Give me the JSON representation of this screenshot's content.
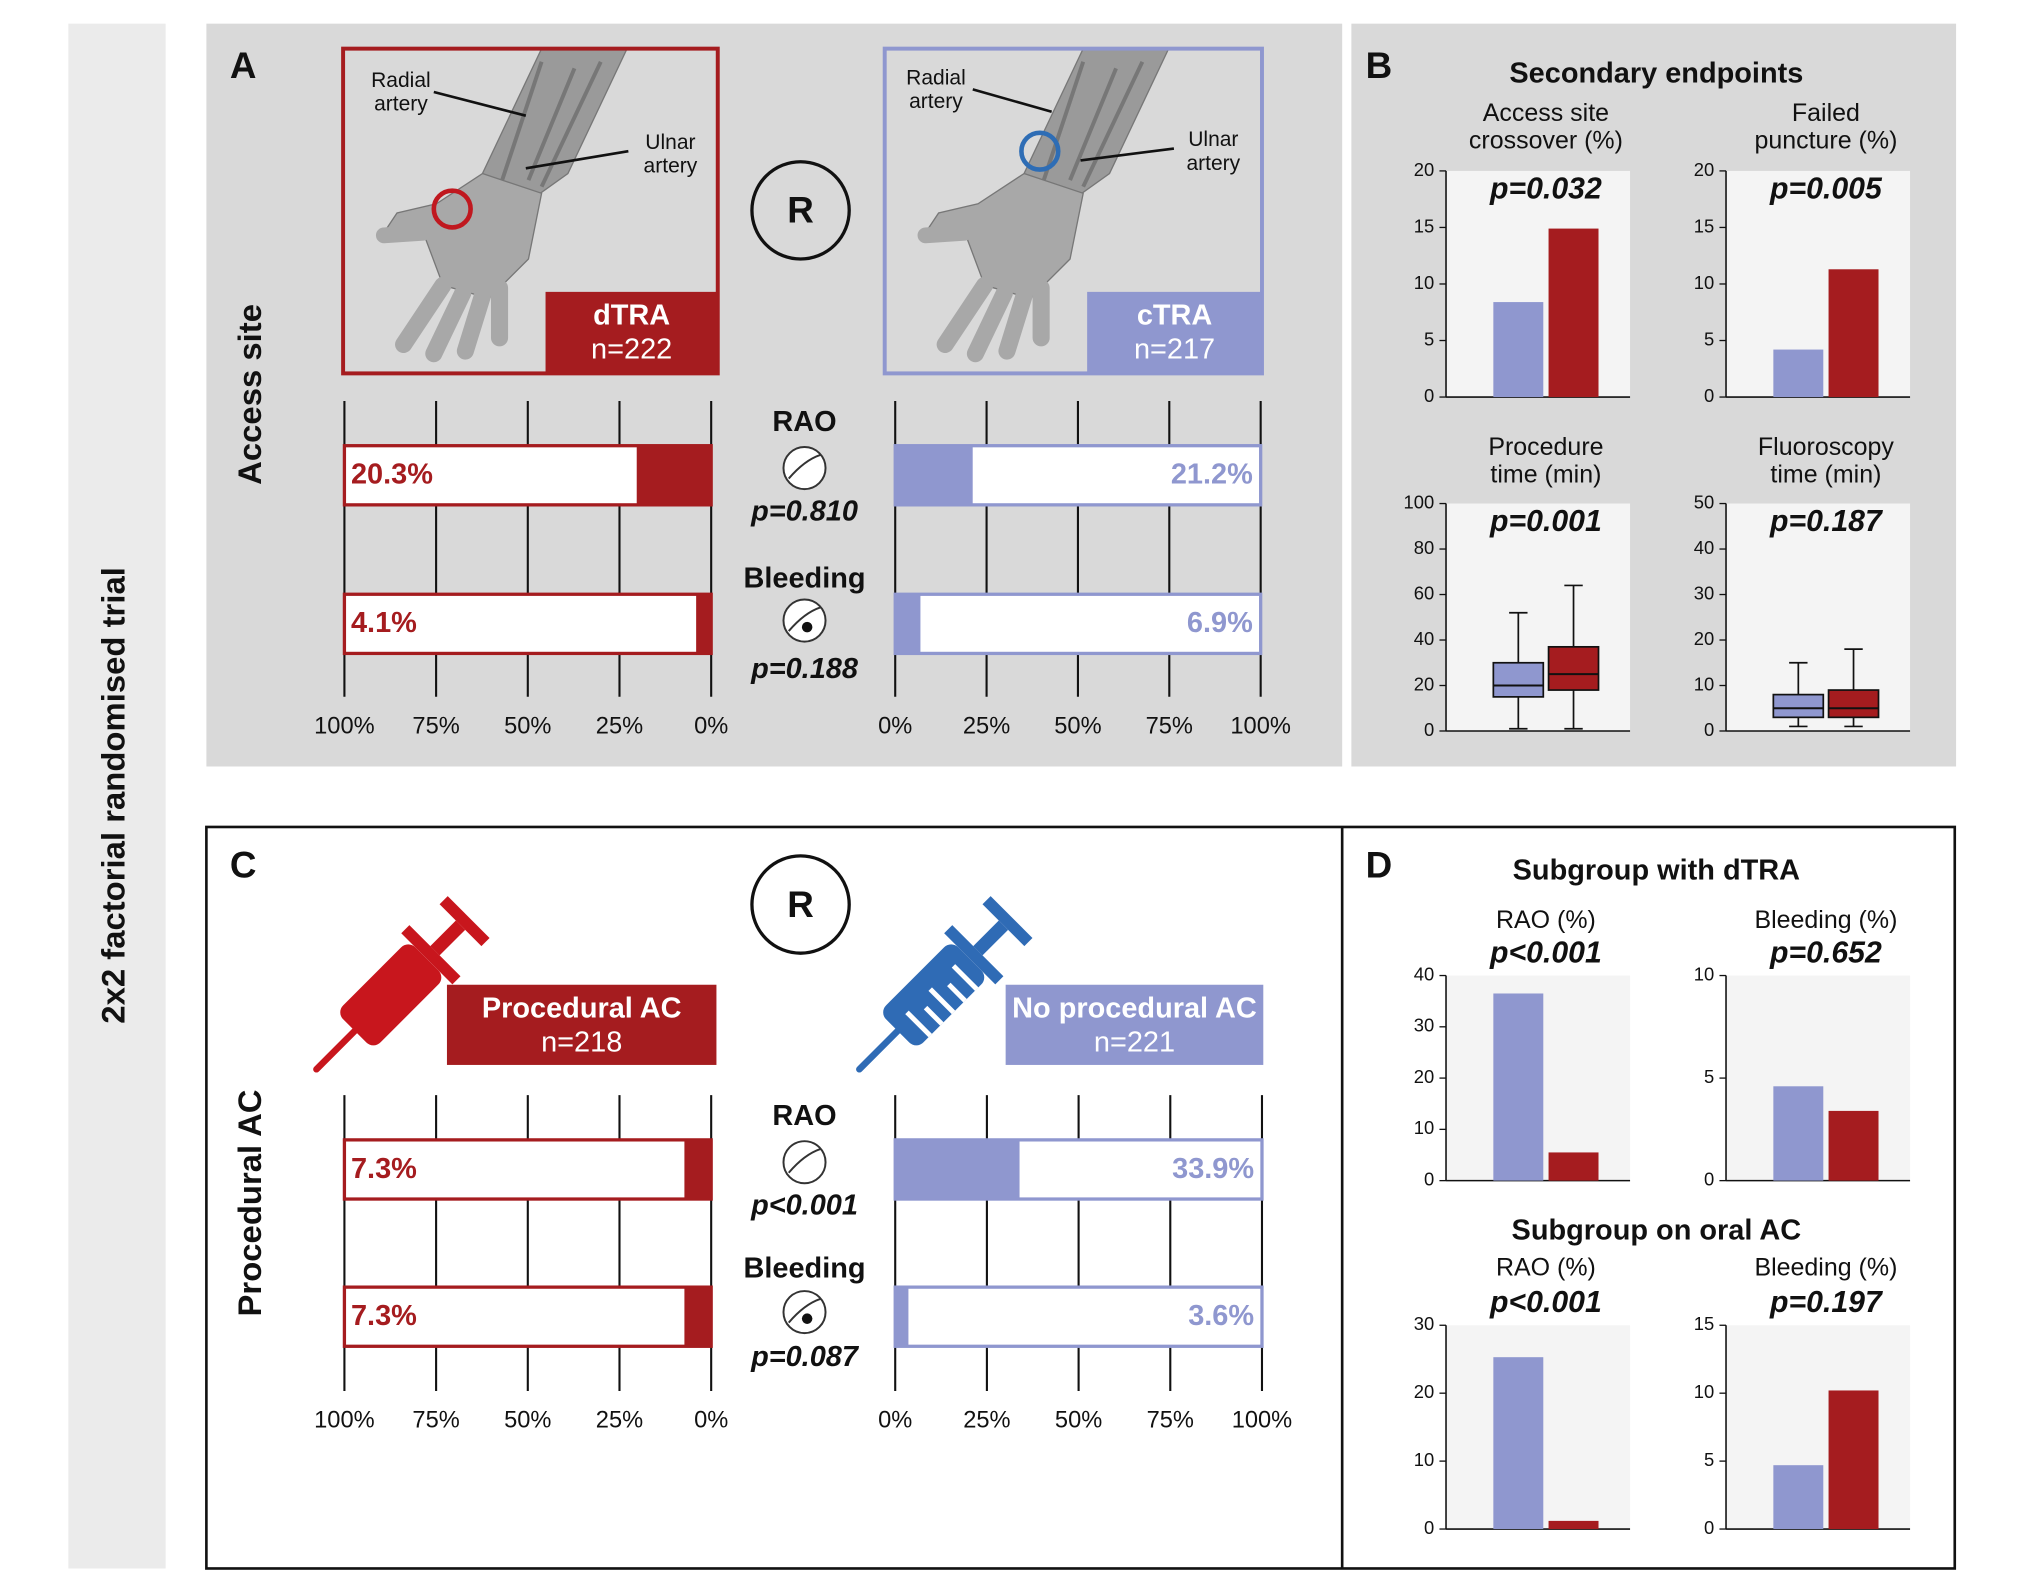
{
  "side_title": "2x2 factorial randomised trial",
  "panels": [
    {
      "letter": "A",
      "row_label": "Access site",
      "randomisation": "R",
      "arms": [
        {
          "name": "dTRA",
          "n": "n=222"
        },
        {
          "name": "cTRA",
          "n": "n=217"
        }
      ],
      "annotations": [
        [
          "Radial",
          "artery"
        ],
        [
          "Ulnar",
          "artery"
        ],
        [
          "Radial",
          "artery"
        ],
        [
          "Ulnar",
          "artery"
        ]
      ],
      "outcomes": [
        {
          "name": "RAO",
          "p": "p=0.810"
        },
        {
          "name": "Bleeding",
          "p": "p=0.188"
        }
      ]
    },
    {
      "letter": "B",
      "titles": [
        "Secondary endpoints"
      ]
    },
    {
      "letter": "C",
      "row_label": "Procedural AC",
      "randomisation": "R",
      "arms": [
        {
          "name": "Procedural AC",
          "n": "n=218"
        },
        {
          "name": "No procedural AC",
          "n": "n=221"
        }
      ],
      "outcomes": [
        {
          "name": "RAO",
          "p": "p<0.001"
        },
        {
          "name": "Bleeding",
          "p": "p=0.087"
        }
      ]
    },
    {
      "letter": "D",
      "titles": [
        "Subgroup with dTRA",
        "Subgroup on oral AC"
      ]
    }
  ],
  "chart_data": [
    {
      "type": "hbar",
      "values": [
        20.3,
        4.1
      ],
      "value_labels": [
        "20.3%",
        "4.1%"
      ],
      "color": "#a51c1f",
      "xlim": [
        100,
        0
      ],
      "xticks": [
        {
          "value": 100,
          "label": "100%"
        },
        {
          "value": 75,
          "label": "75%"
        },
        {
          "value": 50,
          "label": "50%"
        },
        {
          "value": 25,
          "label": "25%"
        },
        {
          "value": 0,
          "label": "0%"
        }
      ]
    },
    {
      "type": "hbar",
      "values": [
        21.2,
        6.9
      ],
      "value_labels": [
        "21.2%",
        "6.9%"
      ],
      "color": "#8f97cf",
      "xlim": [
        0,
        100
      ],
      "xticks": [
        {
          "value": 0,
          "label": "0%"
        },
        {
          "value": 25,
          "label": "25%"
        },
        {
          "value": 50,
          "label": "50%"
        },
        {
          "value": 75,
          "label": "75%"
        },
        {
          "value": 100,
          "label": "100%"
        }
      ]
    },
    {
      "type": "hbar",
      "values": [
        7.3,
        7.3
      ],
      "value_labels": [
        "7.3%",
        "7.3%"
      ],
      "color": "#a51c1f",
      "xlim": [
        100,
        0
      ],
      "xticks": [
        {
          "value": 100,
          "label": "100%"
        },
        {
          "value": 75,
          "label": "75%"
        },
        {
          "value": 50,
          "label": "50%"
        },
        {
          "value": 25,
          "label": "25%"
        },
        {
          "value": 0,
          "label": "0%"
        }
      ]
    },
    {
      "type": "hbar",
      "values": [
        33.9,
        3.6
      ],
      "value_labels": [
        "33.9%",
        "3.6%"
      ],
      "color": "#8f97cf",
      "xlim": [
        0,
        100
      ],
      "xticks": [
        {
          "value": 0,
          "label": "0%"
        },
        {
          "value": 25,
          "label": "25%"
        },
        {
          "value": 50,
          "label": "50%"
        },
        {
          "value": 75,
          "label": "75%"
        },
        {
          "value": 100,
          "label": "100%"
        }
      ]
    },
    {
      "type": "bar",
      "title": [
        "Access site",
        "crossover (%)"
      ],
      "subtitle": "p=0.032",
      "values": [
        8.4,
        14.9
      ],
      "colors": [
        "#8f97cf",
        "#a51c1f"
      ],
      "ylim": [
        0,
        20
      ],
      "yticks": [
        0,
        5,
        10,
        15,
        20
      ]
    },
    {
      "type": "bar",
      "title": [
        "Failed",
        "puncture (%)"
      ],
      "subtitle": "p=0.005",
      "values": [
        4.2,
        11.3
      ],
      "colors": [
        "#8f97cf",
        "#a51c1f"
      ],
      "ylim": [
        0,
        20
      ],
      "yticks": [
        0,
        5,
        10,
        15,
        20
      ]
    },
    {
      "type": "box",
      "title": [
        "Procedure",
        "time (min)"
      ],
      "subtitle": "p=0.001",
      "colors": [
        "#8f97cf",
        "#a51c1f"
      ],
      "ylim": [
        0,
        100
      ],
      "yticks": [
        0,
        20,
        40,
        60,
        80,
        100
      ],
      "boxes": [
        {
          "whislo": 1,
          "q1": 15,
          "med": 20,
          "q3": 30,
          "whishi": 52
        },
        {
          "whislo": 1,
          "q1": 18,
          "med": 25,
          "q3": 37,
          "whishi": 64
        }
      ]
    },
    {
      "type": "box",
      "title": [
        "Fluoroscopy",
        "time (min)"
      ],
      "subtitle": "p=0.187",
      "colors": [
        "#8f97cf",
        "#a51c1f"
      ],
      "ylim": [
        0,
        50
      ],
      "yticks": [
        0,
        10,
        20,
        30,
        40,
        50
      ],
      "boxes": [
        {
          "whislo": 1,
          "q1": 3,
          "med": 5,
          "q3": 8,
          "whishi": 15
        },
        {
          "whislo": 1,
          "q1": 3,
          "med": 5,
          "q3": 9,
          "whishi": 18
        }
      ]
    },
    {
      "type": "bar",
      "title": [
        "RAO (%)"
      ],
      "subtitle": "p<0.001",
      "values": [
        36.5,
        5.5
      ],
      "colors": [
        "#8f97cf",
        "#a51c1f"
      ],
      "ylim": [
        0,
        40
      ],
      "yticks": [
        0,
        10,
        20,
        30,
        40
      ]
    },
    {
      "type": "bar",
      "title": [
        "Bleeding (%)"
      ],
      "subtitle": "p=0.652",
      "values": [
        4.6,
        3.4
      ],
      "colors": [
        "#8f97cf",
        "#a51c1f"
      ],
      "ylim": [
        0,
        10
      ],
      "yticks": [
        0,
        5,
        10
      ]
    },
    {
      "type": "bar",
      "title": [
        "RAO (%)"
      ],
      "subtitle": "p<0.001",
      "values": [
        25.3,
        1.2
      ],
      "colors": [
        "#8f97cf",
        "#a51c1f"
      ],
      "ylim": [
        0,
        30
      ],
      "yticks": [
        0,
        10,
        20,
        30
      ]
    },
    {
      "type": "bar",
      "title": [
        "Bleeding (%)"
      ],
      "subtitle": "p=0.197",
      "values": [
        4.7,
        10.2
      ],
      "colors": [
        "#8f97cf",
        "#a51c1f"
      ],
      "ylim": [
        0,
        15
      ],
      "yticks": [
        0,
        5,
        10,
        15
      ]
    }
  ]
}
